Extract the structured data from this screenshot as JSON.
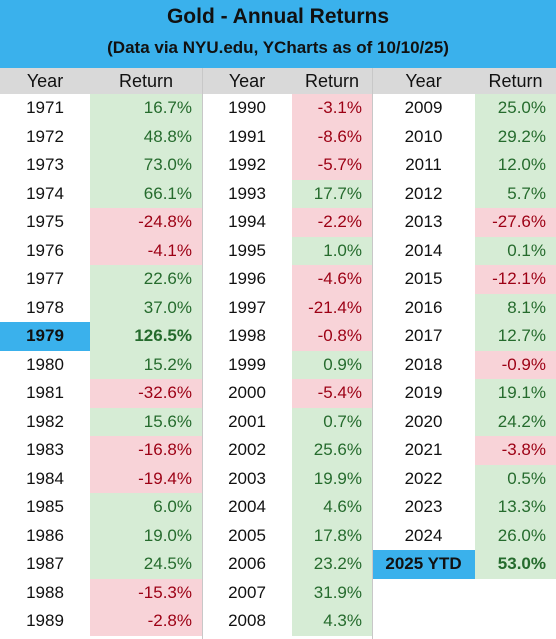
{
  "title": "Gold - Annual Returns",
  "subtitle": "(Data via NYU.edu, YCharts as of 10/10/25)",
  "headers": {
    "year": "Year",
    "return": "Return"
  },
  "columns": [
    [
      {
        "year": "1971",
        "ret": "16.7%",
        "sign": "pos"
      },
      {
        "year": "1972",
        "ret": "48.8%",
        "sign": "pos"
      },
      {
        "year": "1973",
        "ret": "73.0%",
        "sign": "pos"
      },
      {
        "year": "1974",
        "ret": "66.1%",
        "sign": "pos"
      },
      {
        "year": "1975",
        "ret": "-24.8%",
        "sign": "neg"
      },
      {
        "year": "1976",
        "ret": "-4.1%",
        "sign": "neg"
      },
      {
        "year": "1977",
        "ret": "22.6%",
        "sign": "pos"
      },
      {
        "year": "1978",
        "ret": "37.0%",
        "sign": "pos"
      },
      {
        "year": "1979",
        "ret": "126.5%",
        "sign": "pos",
        "highlight": true
      },
      {
        "year": "1980",
        "ret": "15.2%",
        "sign": "pos"
      },
      {
        "year": "1981",
        "ret": "-32.6%",
        "sign": "neg"
      },
      {
        "year": "1982",
        "ret": "15.6%",
        "sign": "pos"
      },
      {
        "year": "1983",
        "ret": "-16.8%",
        "sign": "neg"
      },
      {
        "year": "1984",
        "ret": "-19.4%",
        "sign": "neg"
      },
      {
        "year": "1985",
        "ret": "6.0%",
        "sign": "pos"
      },
      {
        "year": "1986",
        "ret": "19.0%",
        "sign": "pos"
      },
      {
        "year": "1987",
        "ret": "24.5%",
        "sign": "pos"
      },
      {
        "year": "1988",
        "ret": "-15.3%",
        "sign": "neg"
      },
      {
        "year": "1989",
        "ret": "-2.8%",
        "sign": "neg"
      }
    ],
    [
      {
        "year": "1990",
        "ret": "-3.1%",
        "sign": "neg"
      },
      {
        "year": "1991",
        "ret": "-8.6%",
        "sign": "neg"
      },
      {
        "year": "1992",
        "ret": "-5.7%",
        "sign": "neg"
      },
      {
        "year": "1993",
        "ret": "17.7%",
        "sign": "pos"
      },
      {
        "year": "1994",
        "ret": "-2.2%",
        "sign": "neg"
      },
      {
        "year": "1995",
        "ret": "1.0%",
        "sign": "pos"
      },
      {
        "year": "1996",
        "ret": "-4.6%",
        "sign": "neg"
      },
      {
        "year": "1997",
        "ret": "-21.4%",
        "sign": "neg"
      },
      {
        "year": "1998",
        "ret": "-0.8%",
        "sign": "neg"
      },
      {
        "year": "1999",
        "ret": "0.9%",
        "sign": "pos"
      },
      {
        "year": "2000",
        "ret": "-5.4%",
        "sign": "neg"
      },
      {
        "year": "2001",
        "ret": "0.7%",
        "sign": "pos"
      },
      {
        "year": "2002",
        "ret": "25.6%",
        "sign": "pos"
      },
      {
        "year": "2003",
        "ret": "19.9%",
        "sign": "pos"
      },
      {
        "year": "2004",
        "ret": "4.6%",
        "sign": "pos"
      },
      {
        "year": "2005",
        "ret": "17.8%",
        "sign": "pos"
      },
      {
        "year": "2006",
        "ret": "23.2%",
        "sign": "pos"
      },
      {
        "year": "2007",
        "ret": "31.9%",
        "sign": "pos"
      },
      {
        "year": "2008",
        "ret": "4.3%",
        "sign": "pos"
      }
    ],
    [
      {
        "year": "2009",
        "ret": "25.0%",
        "sign": "pos"
      },
      {
        "year": "2010",
        "ret": "29.2%",
        "sign": "pos"
      },
      {
        "year": "2011",
        "ret": "12.0%",
        "sign": "pos"
      },
      {
        "year": "2012",
        "ret": "5.7%",
        "sign": "pos"
      },
      {
        "year": "2013",
        "ret": "-27.6%",
        "sign": "neg"
      },
      {
        "year": "2014",
        "ret": "0.1%",
        "sign": "pos"
      },
      {
        "year": "2015",
        "ret": "-12.1%",
        "sign": "neg"
      },
      {
        "year": "2016",
        "ret": "8.1%",
        "sign": "pos"
      },
      {
        "year": "2017",
        "ret": "12.7%",
        "sign": "pos"
      },
      {
        "year": "2018",
        "ret": "-0.9%",
        "sign": "neg"
      },
      {
        "year": "2019",
        "ret": "19.1%",
        "sign": "pos"
      },
      {
        "year": "2020",
        "ret": "24.2%",
        "sign": "pos"
      },
      {
        "year": "2021",
        "ret": "-3.8%",
        "sign": "neg"
      },
      {
        "year": "2022",
        "ret": "0.5%",
        "sign": "pos"
      },
      {
        "year": "2023",
        "ret": "13.3%",
        "sign": "pos"
      },
      {
        "year": "2024",
        "ret": "26.0%",
        "sign": "pos"
      },
      {
        "year": "2025 YTD",
        "ret": "53.0%",
        "sign": "pos",
        "ytd": true
      }
    ]
  ],
  "colors": {
    "header_bg": "#3ab1ec",
    "pos_bg": "#d6ecd5",
    "pos_text": "#256b2d",
    "neg_bg": "#f8d3d8",
    "neg_text": "#9c0014"
  }
}
